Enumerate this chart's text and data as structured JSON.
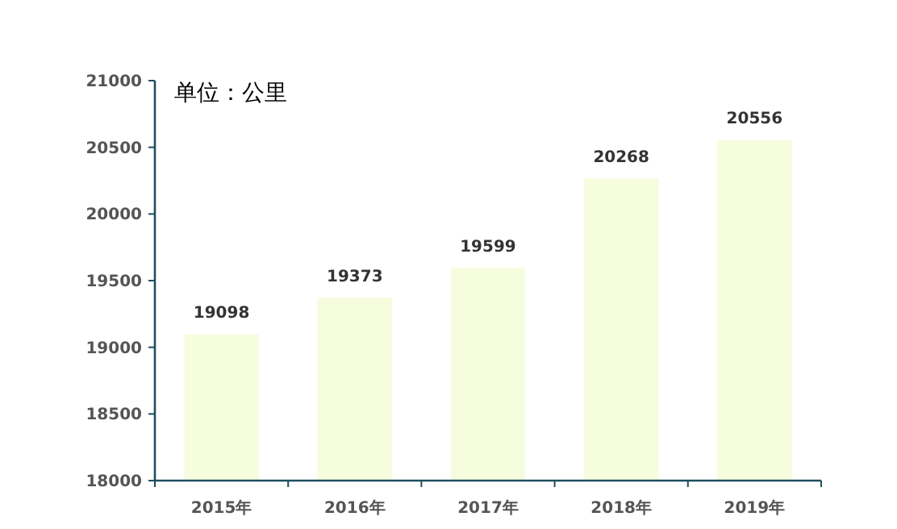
{
  "chart_data": {
    "type": "bar",
    "categories": [
      "2015年",
      "2016年",
      "2017年",
      "2018年",
      "2019年"
    ],
    "values": [
      19098,
      19373,
      19599,
      20268,
      20556
    ],
    "color": "#f6fddf",
    "ylim": [
      18000,
      21000
    ],
    "yticks": [
      18000,
      18500,
      19000,
      19500,
      20000,
      20500,
      21000
    ],
    "data_labels": true,
    "grid": false,
    "annotations": [
      "单位：公里"
    ]
  }
}
